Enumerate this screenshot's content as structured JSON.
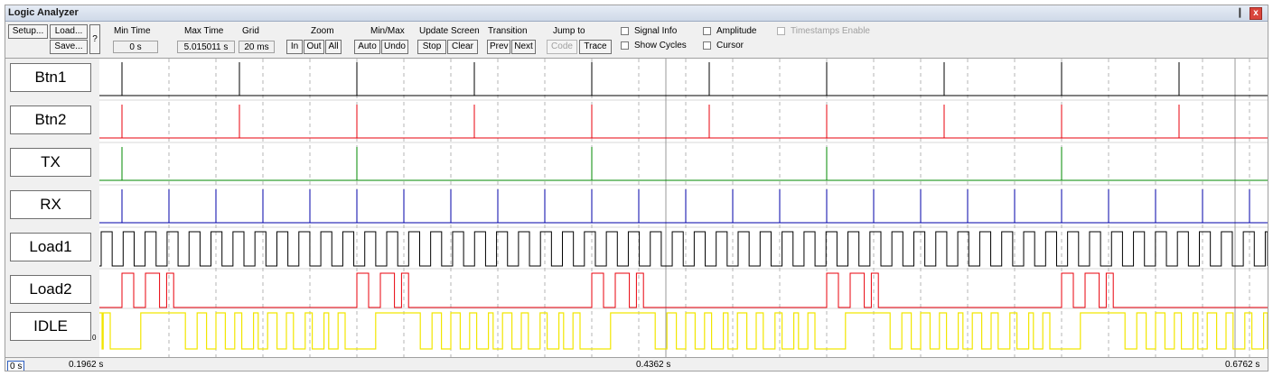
{
  "window": {
    "title": "Logic Analyzer",
    "pin_glyph": "❙",
    "close_glyph": "x"
  },
  "toolbar": {
    "setup": "Setup...",
    "load": "Load...",
    "save": "Save...",
    "help": "?",
    "min_time": {
      "label": "Min Time",
      "value": "0 s"
    },
    "max_time": {
      "label": "Max Time",
      "value": "5.015011 s"
    },
    "grid": {
      "label": "Grid",
      "value": "20 ms"
    },
    "zoom": {
      "label": "Zoom",
      "in": "In",
      "out": "Out",
      "all": "All"
    },
    "minmax": {
      "label": "Min/Max",
      "auto": "Auto",
      "undo": "Undo"
    },
    "update_screen": {
      "label": "Update Screen",
      "stop": "Stop",
      "clear": "Clear"
    },
    "transition": {
      "label": "Transition",
      "prev": "Prev",
      "next": "Next"
    },
    "jump_to": {
      "label": "Jump to",
      "code": "Code",
      "trace": "Trace"
    },
    "options": {
      "signal_info": "Signal Info",
      "show_cycles": "Show Cycles",
      "amplitude": "Amplitude",
      "cursor": "Cursor",
      "timestamps_enable": "Timestamps Enable"
    }
  },
  "signals": [
    {
      "name": "Btn1",
      "color": "#000000",
      "kind": "pulses",
      "pulses": [
        0.0,
        0.5,
        1.0,
        1.5,
        2.0,
        2.5,
        3.0,
        3.5,
        4.0,
        4.5
      ]
    },
    {
      "name": "Btn2",
      "color": "#e8000b",
      "kind": "pulses",
      "pulses": [
        0.0,
        0.5,
        1.0,
        1.5,
        2.0,
        2.5,
        3.0,
        3.5,
        4.0,
        4.5
      ]
    },
    {
      "name": "TX",
      "color": "#008a00",
      "kind": "pulses",
      "pulses": [
        0.0,
        1.0,
        2.0,
        3.0,
        4.0
      ]
    },
    {
      "name": "RX",
      "color": "#0000a8",
      "kind": "pulses",
      "pulses": [
        0.0,
        0.2,
        0.4,
        0.6,
        0.8,
        1.0,
        1.2,
        1.4,
        1.6,
        1.8,
        2.0,
        2.2,
        2.4,
        2.6,
        2.8,
        3.0,
        3.2,
        3.4,
        3.6,
        3.8,
        4.0,
        4.2,
        4.4,
        4.6,
        4.8
      ]
    },
    {
      "name": "Load1",
      "color": "#000000",
      "kind": "clock",
      "period": 0.0935
    },
    {
      "name": "Load2",
      "color": "#e8000b",
      "kind": "bursts",
      "bursts": [
        0.0,
        1.0,
        2.0,
        3.0,
        4.0
      ]
    },
    {
      "name": "IDLE",
      "color": "#f2e600",
      "kind": "idle",
      "base_level": "0"
    }
  ],
  "timeline": {
    "cursor_box": "0 s",
    "left": "0.1962 s",
    "center": "0.4362 s",
    "right": "0.6762 s"
  }
}
